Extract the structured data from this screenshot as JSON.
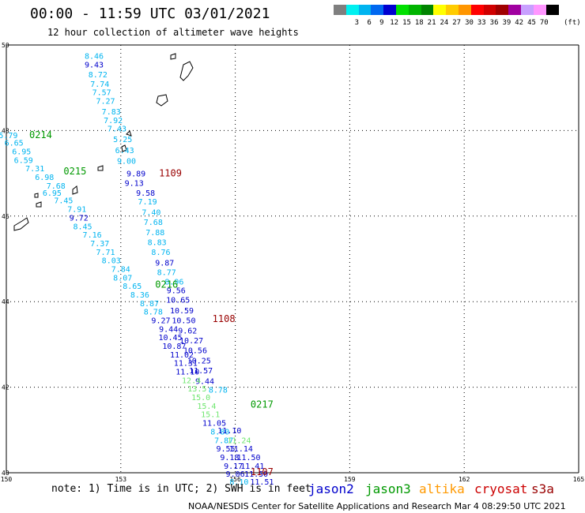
{
  "title": "00:00 - 11:59 UTC 03/01/2021",
  "subtitle": "12 hour collection of altimeter wave heights",
  "legend": {
    "unit": "(ft)",
    "items": [
      {
        "label": "",
        "color": "#7f7f7f"
      },
      {
        "label": "3",
        "color": "#00f0f0"
      },
      {
        "label": "6",
        "color": "#00b4f0"
      },
      {
        "label": "9",
        "color": "#0068f0"
      },
      {
        "label": "12",
        "color": "#0000d0"
      },
      {
        "label": "15",
        "color": "#00e000"
      },
      {
        "label": "18",
        "color": "#00b400"
      },
      {
        "label": "21",
        "color": "#008400"
      },
      {
        "label": "24",
        "color": "#ffff00"
      },
      {
        "label": "27",
        "color": "#ffcc00"
      },
      {
        "label": "30",
        "color": "#ff9600"
      },
      {
        "label": "33",
        "color": "#ff0000"
      },
      {
        "label": "36",
        "color": "#d00000"
      },
      {
        "label": "39",
        "color": "#a00000"
      },
      {
        "label": "42",
        "color": "#a000a0"
      },
      {
        "label": "45",
        "color": "#c8a0ff"
      },
      {
        "label": "70",
        "color": "#ff96ff"
      },
      {
        "label": "",
        "color": "#000000"
      }
    ]
  },
  "axes": {
    "lon_ticks": [
      "150",
      "153",
      "156",
      "159",
      "162",
      "165"
    ],
    "lat_ticks": [
      "50",
      "48",
      "46",
      "44",
      "42",
      "40"
    ]
  },
  "note": "note: 1) Time is in UTC; 2) SWH is in feet",
  "satellites": [
    {
      "name": "jason2",
      "color": "#0000cc"
    },
    {
      "name": "jason3",
      "color": "#009900"
    },
    {
      "name": "altika",
      "color": "#ff9900"
    },
    {
      "name": "cryosat",
      "color": "#cc0000"
    },
    {
      "name": "s3a",
      "color": "#990000"
    }
  ],
  "credit": "NOAA/NESDIS Center for Satellite Applications and Research   Mar  4 08:29:50 UTC 2021",
  "colors": {
    "c3": "#00b4f0",
    "c9": "#0000cc",
    "c12": "#6ee66e",
    "time_green": "#009900",
    "time_red": "#990000"
  },
  "time_labels": [
    {
      "text": "0214",
      "lon": 150.9,
      "lat": 47.9,
      "color": "#009900"
    },
    {
      "text": "0215",
      "lon": 151.8,
      "lat": 47.05,
      "color": "#009900"
    },
    {
      "text": "1109",
      "lon": 154.3,
      "lat": 47.0,
      "color": "#990000"
    },
    {
      "text": "0216",
      "lon": 154.2,
      "lat": 44.4,
      "color": "#009900"
    },
    {
      "text": "1108",
      "lon": 155.7,
      "lat": 43.6,
      "color": "#990000"
    },
    {
      "text": "0217",
      "lon": 156.7,
      "lat": 41.6,
      "color": "#009900"
    },
    {
      "text": "1107",
      "lon": 156.7,
      "lat": 40.02,
      "color": "#990000"
    }
  ],
  "chart_data": {
    "type": "scatter",
    "x_range": [
      150,
      165
    ],
    "y_range": [
      40,
      50
    ],
    "tracks": [
      {
        "name": "track-north",
        "points": [
          {
            "lon": 152.3,
            "lat": 49.75,
            "v": "8.46",
            "c": "c3"
          },
          {
            "lon": 152.3,
            "lat": 49.55,
            "v": "9.43",
            "c": "c9"
          },
          {
            "lon": 152.4,
            "lat": 49.32,
            "v": "8.72",
            "c": "c3"
          },
          {
            "lon": 152.45,
            "lat": 49.1,
            "v": "7.74",
            "c": "c3"
          },
          {
            "lon": 152.5,
            "lat": 48.9,
            "v": "7.57",
            "c": "c3"
          },
          {
            "lon": 152.6,
            "lat": 48.7,
            "v": "7.27",
            "c": "c3"
          },
          {
            "lon": 152.75,
            "lat": 48.45,
            "v": "7.83",
            "c": "c3"
          },
          {
            "lon": 152.8,
            "lat": 48.25,
            "v": "7.92",
            "c": "c3"
          },
          {
            "lon": 152.9,
            "lat": 48.05,
            "v": "7.43",
            "c": "c3"
          },
          {
            "lon": 153.05,
            "lat": 47.8,
            "v": "5.25",
            "c": "c3"
          },
          {
            "lon": 153.1,
            "lat": 47.55,
            "v": "6.43",
            "c": "c3"
          },
          {
            "lon": 153.15,
            "lat": 47.3,
            "v": "9.00",
            "c": "c3"
          },
          {
            "lon": 153.4,
            "lat": 47.0,
            "v": "9.89",
            "c": "c9"
          },
          {
            "lon": 153.35,
            "lat": 46.78,
            "v": "9.13",
            "c": "c9"
          },
          {
            "lon": 153.65,
            "lat": 46.55,
            "v": "9.58",
            "c": "c9"
          },
          {
            "lon": 153.7,
            "lat": 46.35,
            "v": "7.19",
            "c": "c3"
          },
          {
            "lon": 153.8,
            "lat": 46.1,
            "v": "7.40",
            "c": "c3"
          },
          {
            "lon": 153.85,
            "lat": 45.87,
            "v": "7.68",
            "c": "c3"
          },
          {
            "lon": 153.9,
            "lat": 45.63,
            "v": "7.88",
            "c": "c3"
          },
          {
            "lon": 153.95,
            "lat": 45.4,
            "v": "8.83",
            "c": "c3"
          },
          {
            "lon": 154.05,
            "lat": 45.17,
            "v": "8.76",
            "c": "c3"
          },
          {
            "lon": 154.15,
            "lat": 44.92,
            "v": "9.87",
            "c": "c9"
          },
          {
            "lon": 154.2,
            "lat": 44.7,
            "v": "8.77",
            "c": "c3"
          },
          {
            "lon": 154.4,
            "lat": 44.47,
            "v": "8.96",
            "c": "c3"
          },
          {
            "lon": 154.45,
            "lat": 44.27,
            "v": "9.56",
            "c": "c9"
          },
          {
            "lon": 154.5,
            "lat": 44.05,
            "v": "10.65",
            "c": "c9"
          },
          {
            "lon": 154.6,
            "lat": 43.8,
            "v": "10.59",
            "c": "c9"
          },
          {
            "lon": 154.65,
            "lat": 43.57,
            "v": "10.50",
            "c": "c9"
          },
          {
            "lon": 154.75,
            "lat": 43.33,
            "v": "9.62",
            "c": "c9"
          },
          {
            "lon": 154.85,
            "lat": 43.1,
            "v": "10.27",
            "c": "c9"
          },
          {
            "lon": 154.95,
            "lat": 42.87,
            "v": "10.56",
            "c": "c9"
          },
          {
            "lon": 155.05,
            "lat": 42.63,
            "v": "10.25",
            "c": "c9"
          },
          {
            "lon": 155.1,
            "lat": 42.4,
            "v": "11.57",
            "c": "c9"
          },
          {
            "lon": 155.2,
            "lat": 42.15,
            "v": "9.44",
            "c": "c9"
          }
        ]
      },
      {
        "name": "track-west",
        "points": [
          {
            "lon": 150.05,
            "lat": 47.9,
            "v": "5.79",
            "c": "c3"
          },
          {
            "lon": 150.2,
            "lat": 47.72,
            "v": "6.65",
            "c": "c3"
          },
          {
            "lon": 150.4,
            "lat": 47.52,
            "v": "6.95",
            "c": "c3"
          },
          {
            "lon": 150.45,
            "lat": 47.32,
            "v": "6.59",
            "c": "c3"
          },
          {
            "lon": 150.75,
            "lat": 47.12,
            "v": "7.31",
            "c": "c3"
          },
          {
            "lon": 151.0,
            "lat": 46.92,
            "v": "6.98",
            "c": "c3"
          },
          {
            "lon": 151.3,
            "lat": 46.72,
            "v": "7.68",
            "c": "c3"
          },
          {
            "lon": 151.2,
            "lat": 46.55,
            "v": "6.95",
            "c": "c3"
          },
          {
            "lon": 151.5,
            "lat": 46.37,
            "v": "7.45",
            "c": "c3"
          },
          {
            "lon": 151.85,
            "lat": 46.17,
            "v": "7.91",
            "c": "c3"
          },
          {
            "lon": 151.9,
            "lat": 45.97,
            "v": "9.72",
            "c": "c9"
          },
          {
            "lon": 152.0,
            "lat": 45.77,
            "v": "8.45",
            "c": "c3"
          },
          {
            "lon": 152.25,
            "lat": 45.57,
            "v": "7.16",
            "c": "c3"
          },
          {
            "lon": 152.45,
            "lat": 45.37,
            "v": "7.37",
            "c": "c3"
          },
          {
            "lon": 152.6,
            "lat": 45.17,
            "v": "7.71",
            "c": "c3"
          },
          {
            "lon": 152.75,
            "lat": 44.97,
            "v": "8.03",
            "c": "c3"
          },
          {
            "lon": 153.0,
            "lat": 44.77,
            "v": "7.84",
            "c": "c3"
          },
          {
            "lon": 153.05,
            "lat": 44.57,
            "v": "8.07",
            "c": "c3"
          },
          {
            "lon": 153.3,
            "lat": 44.37,
            "v": "8.65",
            "c": "c3"
          },
          {
            "lon": 153.5,
            "lat": 44.17,
            "v": "8.36",
            "c": "c3"
          },
          {
            "lon": 153.75,
            "lat": 43.97,
            "v": "8.87",
            "c": "c3"
          },
          {
            "lon": 153.85,
            "lat": 43.77,
            "v": "8.78",
            "c": "c3"
          },
          {
            "lon": 154.05,
            "lat": 43.57,
            "v": "9.27",
            "c": "c9"
          },
          {
            "lon": 154.25,
            "lat": 43.37,
            "v": "9.44",
            "c": "c9"
          },
          {
            "lon": 154.3,
            "lat": 43.17,
            "v": "10.45",
            "c": "c9"
          },
          {
            "lon": 154.4,
            "lat": 42.97,
            "v": "10.87",
            "c": "c9"
          },
          {
            "lon": 154.6,
            "lat": 42.77,
            "v": "11.02",
            "c": "c9"
          },
          {
            "lon": 154.7,
            "lat": 42.57,
            "v": "11.31",
            "c": "c9"
          },
          {
            "lon": 154.75,
            "lat": 42.37,
            "v": "11.10",
            "c": "c9"
          },
          {
            "lon": 154.85,
            "lat": 42.17,
            "v": "12.4",
            "c": "c12"
          },
          {
            "lon": 155.0,
            "lat": 41.97,
            "v": "13.5",
            "c": "c12"
          },
          {
            "lon": 155.1,
            "lat": 41.77,
            "v": "15.0",
            "c": "c12"
          },
          {
            "lon": 155.25,
            "lat": 41.57,
            "v": "15.4",
            "c": "c12"
          },
          {
            "lon": 155.35,
            "lat": 41.37,
            "v": "15.1",
            "c": "c12"
          },
          {
            "lon": 155.45,
            "lat": 41.17,
            "v": "11.05",
            "c": "c9"
          },
          {
            "lon": 155.6,
            "lat": 40.97,
            "v": "8.80",
            "c": "c3"
          },
          {
            "lon": 155.7,
            "lat": 40.77,
            "v": "7.87",
            "c": "c3"
          },
          {
            "lon": 155.75,
            "lat": 40.57,
            "v": "9.55",
            "c": "c9"
          },
          {
            "lon": 155.85,
            "lat": 40.37,
            "v": "9.18",
            "c": "c9"
          },
          {
            "lon": 155.95,
            "lat": 40.17,
            "v": "9.17",
            "c": "c9"
          },
          {
            "lon": 156.0,
            "lat": 39.98,
            "v": "9.06",
            "c": "c9"
          },
          {
            "lon": 156.1,
            "lat": 39.8,
            "v": "8.10",
            "c": "c3"
          }
        ]
      },
      {
        "name": "track-south",
        "points": [
          {
            "lon": 155.55,
            "lat": 41.95,
            "v": "8.78",
            "c": "c3"
          },
          {
            "lon": 155.85,
            "lat": 41.0,
            "v": "11.10",
            "c": "c9"
          },
          {
            "lon": 156.1,
            "lat": 40.77,
            "v": "11.24",
            "c": "c12"
          },
          {
            "lon": 156.15,
            "lat": 40.57,
            "v": "11.14",
            "c": "c9"
          },
          {
            "lon": 156.35,
            "lat": 40.37,
            "v": "11.50",
            "c": "c9"
          },
          {
            "lon": 156.45,
            "lat": 40.17,
            "v": "11.41",
            "c": "c9"
          },
          {
            "lon": 156.55,
            "lat": 39.98,
            "v": "11.50",
            "c": "c9"
          },
          {
            "lon": 156.7,
            "lat": 39.8,
            "v": "11.51",
            "c": "c9"
          }
        ]
      }
    ]
  }
}
